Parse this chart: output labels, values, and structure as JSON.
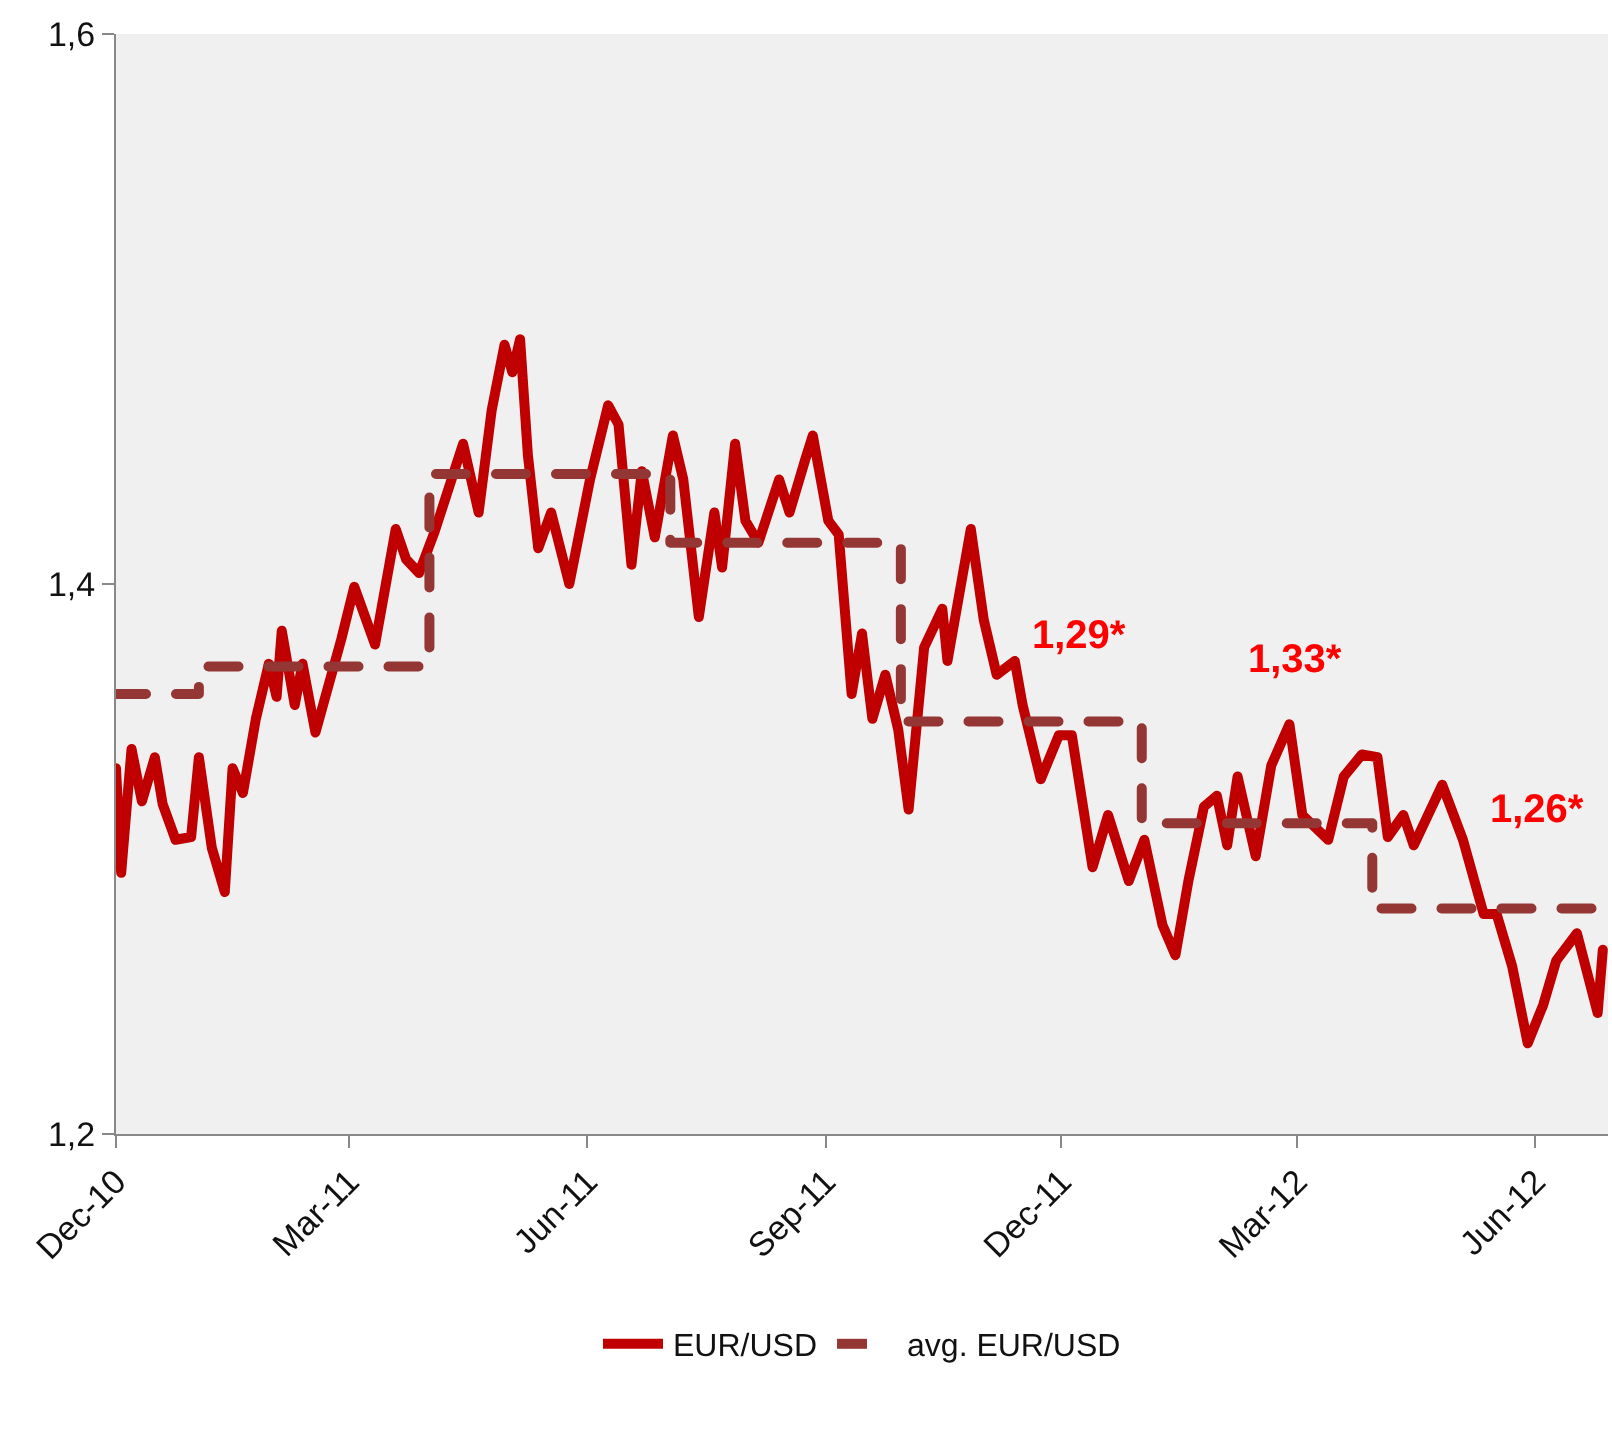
{
  "chart_data": {
    "type": "line",
    "ylim": [
      1.2,
      1.6
    ],
    "yticks": [
      {
        "value": 1.2,
        "label": "1,2"
      },
      {
        "value": 1.4,
        "label": "1,4"
      },
      {
        "value": 1.6,
        "label": "1,6"
      }
    ],
    "xlim": [
      "2010-12-01",
      "2012-06-29"
    ],
    "xticks": [
      {
        "value": "2010-12-01",
        "label": "Dec-10"
      },
      {
        "value": "2011-03-01",
        "label": "Mar-11"
      },
      {
        "value": "2011-06-01",
        "label": "Jun-11"
      },
      {
        "value": "2011-09-01",
        "label": "Sep-11"
      },
      {
        "value": "2011-12-01",
        "label": "Dec-11"
      },
      {
        "value": "2012-03-01",
        "label": "Mar-12"
      },
      {
        "value": "2012-06-01",
        "label": "Jun-12"
      }
    ],
    "grid": false,
    "legend": "bottom",
    "series": [
      {
        "name": "EUR/USD",
        "color": "#c00000",
        "line_style": "solid",
        "x": [
          "2010-12-01",
          "2010-12-03",
          "2010-12-07",
          "2010-12-11",
          "2010-12-16",
          "2010-12-19",
          "2010-12-24",
          "2010-12-30",
          "2011-01-02",
          "2011-01-07",
          "2011-01-12",
          "2011-01-15",
          "2011-01-19",
          "2011-01-24",
          "2011-01-29",
          "2011-02-01",
          "2011-02-03",
          "2011-02-08",
          "2011-02-11",
          "2011-02-16",
          "2011-02-26",
          "2011-03-03",
          "2011-03-11",
          "2011-03-19",
          "2011-03-23",
          "2011-03-28",
          "2011-04-03",
          "2011-04-14",
          "2011-04-20",
          "2011-04-25",
          "2011-04-30",
          "2011-05-03",
          "2011-05-06",
          "2011-05-09",
          "2011-05-13",
          "2011-05-18",
          "2011-05-25",
          "2011-06-02",
          "2011-06-09",
          "2011-06-13",
          "2011-06-18",
          "2011-06-22",
          "2011-06-27",
          "2011-07-04",
          "2011-07-08",
          "2011-07-14",
          "2011-07-20",
          "2011-07-23",
          "2011-07-28",
          "2011-08-01",
          "2011-08-06",
          "2011-08-14",
          "2011-08-18",
          "2011-08-24",
          "2011-08-27",
          "2011-09-02",
          "2011-09-06",
          "2011-09-11",
          "2011-09-15",
          "2011-09-19",
          "2011-09-24",
          "2011-09-29",
          "2011-10-03",
          "2011-10-09",
          "2011-10-16",
          "2011-10-18",
          "2011-10-27",
          "2011-11-01",
          "2011-11-06",
          "2011-11-13",
          "2011-11-16",
          "2011-11-23",
          "2011-11-30",
          "2011-12-05",
          "2011-12-13",
          "2011-12-19",
          "2011-12-27",
          "2012-01-02",
          "2012-01-09",
          "2012-01-14",
          "2012-01-19",
          "2012-01-25",
          "2012-01-30",
          "2012-02-03",
          "2012-02-07",
          "2012-02-14",
          "2012-02-20",
          "2012-02-27",
          "2012-03-03",
          "2012-03-13",
          "2012-03-19",
          "2012-03-26",
          "2012-04-01",
          "2012-04-05",
          "2012-04-11",
          "2012-04-15",
          "2012-04-26",
          "2012-05-04",
          "2012-05-12",
          "2012-05-17",
          "2012-05-23",
          "2012-05-29",
          "2012-06-04",
          "2012-06-09",
          "2012-06-17",
          "2012-06-25",
          "2012-06-27"
        ],
        "values": [
          1.333,
          1.295,
          1.34,
          1.321,
          1.337,
          1.32,
          1.307,
          1.308,
          1.337,
          1.304,
          1.288,
          1.333,
          1.324,
          1.351,
          1.371,
          1.359,
          1.383,
          1.356,
          1.371,
          1.346,
          1.38,
          1.399,
          1.378,
          1.42,
          1.409,
          1.404,
          1.419,
          1.451,
          1.426,
          1.463,
          1.487,
          1.477,
          1.489,
          1.447,
          1.413,
          1.426,
          1.4,
          1.438,
          1.465,
          1.458,
          1.407,
          1.441,
          1.417,
          1.454,
          1.438,
          1.388,
          1.426,
          1.406,
          1.451,
          1.423,
          1.415,
          1.438,
          1.426,
          1.445,
          1.454,
          1.423,
          1.418,
          1.36,
          1.382,
          1.351,
          1.367,
          1.347,
          1.318,
          1.377,
          1.391,
          1.372,
          1.42,
          1.387,
          1.367,
          1.372,
          1.356,
          1.329,
          1.345,
          1.345,
          1.297,
          1.316,
          1.292,
          1.307,
          1.276,
          1.265,
          1.292,
          1.319,
          1.323,
          1.305,
          1.33,
          1.301,
          1.334,
          1.349,
          1.316,
          1.307,
          1.33,
          1.338,
          1.337,
          1.308,
          1.316,
          1.305,
          1.327,
          1.307,
          1.28,
          1.28,
          1.261,
          1.233,
          1.247,
          1.263,
          1.273,
          1.244,
          1.267
        ]
      },
      {
        "name": "avg. EUR/USD",
        "color": "#943634",
        "type": "step",
        "line_style": "dashed",
        "x": [
          "2010-12-01",
          "2011-01-02",
          "2011-04-01",
          "2011-07-03",
          "2011-09-30",
          "2012-01-01",
          "2012-03-30",
          "2012-06-29"
        ],
        "values": [
          1.36,
          1.37,
          1.44,
          1.415,
          1.35,
          1.313,
          1.282,
          1.282
        ]
      }
    ],
    "annotations": [
      "1,29*",
      "1,33*",
      "1,26*"
    ]
  }
}
